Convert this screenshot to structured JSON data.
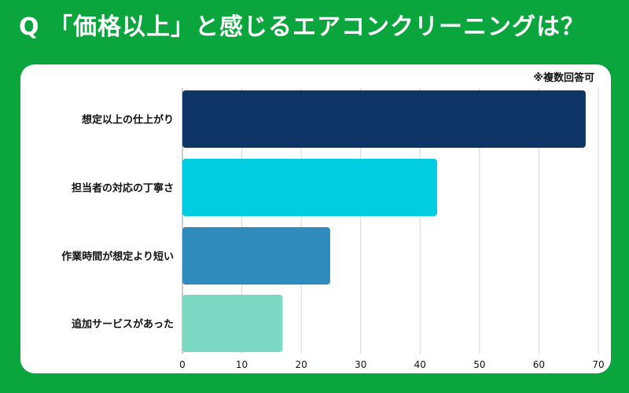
{
  "header": {
    "title": "Q 「価格以上」と感じるエアコンクリーニングは？",
    "note": "※複数回答可"
  },
  "colors": {
    "background": "#0aa53d",
    "card": "#ffffff",
    "grid": "#d7d7d7",
    "text": "#111111"
  },
  "chart_data": {
    "type": "bar",
    "orientation": "horizontal",
    "title": "「価格以上」と感じるエアコンクリーニングは？",
    "categories": [
      "想定以上の仕上がり",
      "担当者の対応の丁寧さ",
      "作業時間が想定より短い",
      "追加サービスがあった"
    ],
    "values": [
      68,
      43,
      25,
      17
    ],
    "bar_colors": [
      "#0f3566",
      "#00cde0",
      "#2f8bbc",
      "#7dd9c4"
    ],
    "xlim": [
      0,
      70
    ],
    "xticks": [
      0,
      10,
      20,
      30,
      40,
      50,
      60,
      70
    ],
    "xlabel": "",
    "ylabel": "",
    "grid": true
  }
}
